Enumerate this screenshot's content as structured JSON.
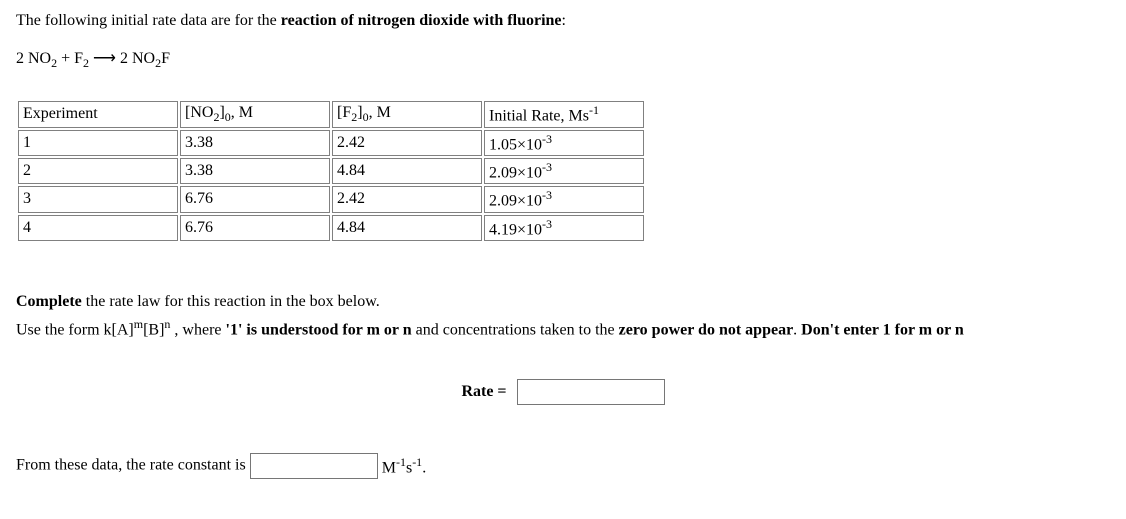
{
  "intro_prefix": "The following initial rate data are for the ",
  "intro_bold": "reaction of nitrogen dioxide with fluorine",
  "intro_suffix": ":",
  "equation_parts": {
    "lhs1_coef": "2 NO",
    "lhs1_sub": "2",
    "plus": " + F",
    "lhs2_sub": "2",
    "arrow": " ⟶ ",
    "rhs_coef": "2 NO",
    "rhs_sub": "2",
    "rhs_tail": "F"
  },
  "table": {
    "col_widths": [
      "150px",
      "140px",
      "140px",
      "150px"
    ],
    "headers": {
      "c0": "Experiment",
      "c1_pre": "[NO",
      "c1_sub": "2",
      "c1_mid": "]",
      "c1_sub2": "0",
      "c1_tail": ", M",
      "c2_pre": "[F",
      "c2_sub": "2",
      "c2_mid": "]",
      "c2_sub2": "0",
      "c2_tail": ", M",
      "c3_pre": "Initial Rate, Ms",
      "c3_sup": "-1"
    },
    "rows": [
      {
        "exp": "1",
        "no2": "3.38",
        "f2": "2.42",
        "rate_m": "1.05×10",
        "rate_e": "-3"
      },
      {
        "exp": "2",
        "no2": "3.38",
        "f2": "4.84",
        "rate_m": "2.09×10",
        "rate_e": "-3"
      },
      {
        "exp": "3",
        "no2": "6.76",
        "f2": "2.42",
        "rate_m": "2.09×10",
        "rate_e": "-3"
      },
      {
        "exp": "4",
        "no2": "6.76",
        "f2": "4.84",
        "rate_m": "4.19×10",
        "rate_e": "-3"
      }
    ]
  },
  "prompt1_bold": "Complete",
  "prompt1_rest": " the rate law for this reaction in the box below.",
  "prompt2_a": "Use the form ",
  "prompt2_form_k": "k[A]",
  "prompt2_form_m": "m",
  "prompt2_form_mid": "[B]",
  "prompt2_form_n": "n",
  "prompt2_b": " , where ",
  "prompt2_bold1": "'1' is understood for m or n",
  "prompt2_c": " and concentrations taken to the ",
  "prompt2_bold2": "zero power do not appear",
  "prompt2_d": ". ",
  "prompt2_bold3": "Don't enter 1 for m or n",
  "rate_label": "Rate =",
  "bottom_text": "From these data, the rate constant is ",
  "unit_m": "M",
  "unit_e1": "-1",
  "unit_s": "s",
  "unit_e2": "-1",
  "unit_dot": "."
}
